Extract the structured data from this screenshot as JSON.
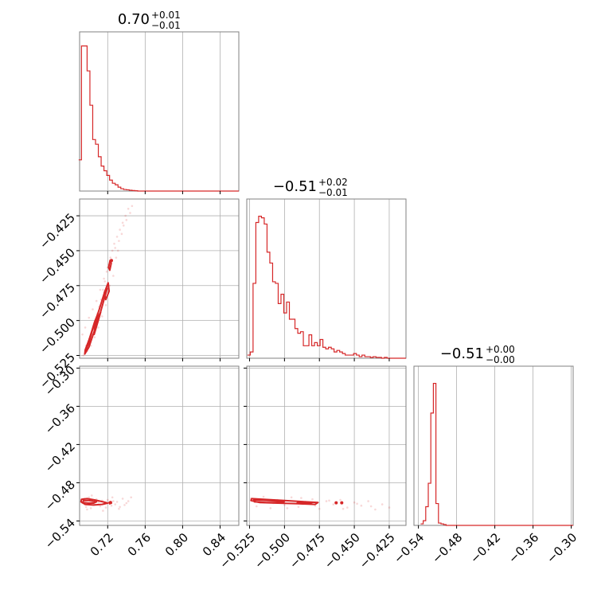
{
  "colors": {
    "series": "#d62728",
    "grid": "#b0b0b0",
    "frame": "#808080",
    "tick": "#000000",
    "background": "#ffffff"
  },
  "chart_data": {
    "type": "corner",
    "parameters": 3,
    "titles": [
      {
        "center": "0.70",
        "plus": "+0.01",
        "minus": "−0.01"
      },
      {
        "center": "−0.51",
        "plus": "+0.02",
        "minus": "−0.01"
      },
      {
        "center": "−0.51",
        "plus": "+0.00",
        "minus": "−0.00"
      }
    ],
    "ranges": [
      [
        0.69,
        0.86
      ],
      [
        -0.527,
        -0.413
      ],
      [
        -0.547,
        -0.297
      ]
    ],
    "ticks": [
      {
        "values": [
          0.72,
          0.76,
          0.8,
          0.84
        ],
        "labels": [
          "0.72",
          "0.76",
          "0.80",
          "0.84"
        ]
      },
      {
        "values": [
          -0.525,
          -0.5,
          -0.475,
          -0.45,
          -0.425
        ],
        "labels": [
          "−0.525",
          "−0.500",
          "−0.475",
          "−0.450",
          "−0.425"
        ]
      },
      {
        "values": [
          -0.54,
          -0.48,
          -0.42,
          -0.36,
          -0.3
        ],
        "labels": [
          "−0.54",
          "−0.48",
          "−0.42",
          "−0.36",
          "−0.30"
        ]
      }
    ],
    "histograms": [
      {
        "param": 0,
        "x": [
          0.6905,
          0.6935,
          0.6965,
          0.6995,
          0.7025,
          0.7055,
          0.7085,
          0.7115,
          0.7145,
          0.7175,
          0.7205,
          0.7235,
          0.7265,
          0.7295,
          0.7325,
          0.7355,
          0.7385,
          0.7415,
          0.7445,
          0.7475,
          0.7505
        ],
        "counts": [
          0.2,
          0.93,
          0.93,
          0.77,
          0.55,
          0.33,
          0.3,
          0.22,
          0.16,
          0.13,
          0.1,
          0.07,
          0.05,
          0.04,
          0.025,
          0.015,
          0.01,
          0.008,
          0.005,
          0.003,
          0.002
        ]
      },
      {
        "param": 1,
        "x": [
          -0.5255,
          -0.5235,
          -0.5215,
          -0.5195,
          -0.5175,
          -0.5155,
          -0.5135,
          -0.5115,
          -0.5095,
          -0.5075,
          -0.5055,
          -0.5035,
          -0.5015,
          -0.4995,
          -0.4975,
          -0.4955,
          -0.4935,
          -0.4915,
          -0.4895,
          -0.4875,
          -0.4855,
          -0.4835,
          -0.4815,
          -0.4795,
          -0.4775,
          -0.4755,
          -0.4735,
          -0.4715,
          -0.4695,
          -0.4675,
          -0.4655,
          -0.4635,
          -0.4615,
          -0.4595,
          -0.4575,
          -0.4555,
          -0.4535,
          -0.4515,
          -0.4495,
          -0.4475,
          -0.4455,
          -0.4435,
          -0.4415,
          -0.4395,
          -0.4375,
          -0.4355,
          -0.4335,
          -0.4315,
          -0.4295,
          -0.4275,
          -0.4255,
          -0.4235,
          -0.4215,
          -0.4195,
          -0.4175,
          -0.4155
        ],
        "counts": [
          0.02,
          0.04,
          0.48,
          0.87,
          0.91,
          0.9,
          0.86,
          0.68,
          0.61,
          0.49,
          0.48,
          0.35,
          0.41,
          0.29,
          0.36,
          0.25,
          0.25,
          0.19,
          0.16,
          0.17,
          0.08,
          0.08,
          0.15,
          0.08,
          0.1,
          0.08,
          0.12,
          0.07,
          0.06,
          0.07,
          0.06,
          0.04,
          0.05,
          0.04,
          0.03,
          0.02,
          0.02,
          0.02,
          0.03,
          0.02,
          0.01,
          0.02,
          0.01,
          0.01,
          0.005,
          0.01,
          0.005,
          0.005,
          0,
          0.005,
          0,
          0,
          0,
          0,
          0,
          0
        ]
      },
      {
        "param": 2,
        "x": [
          -0.5345,
          -0.5305,
          -0.5265,
          -0.5225,
          -0.5185,
          -0.5145,
          -0.5105,
          -0.5065,
          -0.5025,
          -0.4985,
          -0.4945,
          -0.4905
        ],
        "counts": [
          0.01,
          0.03,
          0.12,
          0.27,
          0.72,
          0.91,
          0.14,
          0.015,
          0.01,
          0.005,
          0,
          0
        ]
      }
    ],
    "pairs": [
      {
        "x_param": 0,
        "y_param": 1,
        "scatter": [
          [
            0.694,
            -0.525
          ],
          [
            0.697,
            -0.518
          ],
          [
            0.699,
            -0.52
          ],
          [
            0.701,
            -0.515
          ],
          [
            0.703,
            -0.51
          ],
          [
            0.705,
            -0.505
          ],
          [
            0.707,
            -0.5
          ],
          [
            0.709,
            -0.495
          ],
          [
            0.711,
            -0.49
          ],
          [
            0.713,
            -0.485
          ],
          [
            0.715,
            -0.478
          ],
          [
            0.717,
            -0.472
          ],
          [
            0.719,
            -0.465
          ],
          [
            0.721,
            -0.46
          ],
          [
            0.723,
            -0.455
          ],
          [
            0.725,
            -0.45
          ],
          [
            0.727,
            -0.445
          ],
          [
            0.73,
            -0.44
          ],
          [
            0.733,
            -0.435
          ],
          [
            0.736,
            -0.43
          ],
          [
            0.739,
            -0.425
          ],
          [
            0.742,
            -0.42
          ],
          [
            0.693,
            -0.51
          ],
          [
            0.696,
            -0.505
          ],
          [
            0.7,
            -0.498
          ],
          [
            0.704,
            -0.492
          ],
          [
            0.708,
            -0.486
          ],
          [
            0.712,
            -0.478
          ],
          [
            0.716,
            -0.47
          ],
          [
            0.72,
            -0.462
          ],
          [
            0.724,
            -0.458
          ],
          [
            0.728,
            -0.448
          ],
          [
            0.732,
            -0.443
          ],
          [
            0.735,
            -0.438
          ],
          [
            0.698,
            -0.522
          ],
          [
            0.702,
            -0.518
          ],
          [
            0.706,
            -0.512
          ],
          [
            0.71,
            -0.505
          ],
          [
            0.714,
            -0.497
          ],
          [
            0.718,
            -0.489
          ],
          [
            0.722,
            -0.475
          ],
          [
            0.726,
            -0.468
          ],
          [
            0.729,
            -0.455
          ],
          [
            0.731,
            -0.45
          ],
          [
            0.737,
            -0.432
          ],
          [
            0.74,
            -0.428
          ],
          [
            0.744,
            -0.423
          ],
          [
            0.746,
            -0.418
          ]
        ],
        "contours": [
          [
            [
              0.6955,
              -0.524
            ],
            [
              0.7,
              -0.519
            ],
            [
              0.7055,
              -0.508
            ],
            [
              0.7115,
              -0.496
            ],
            [
              0.7165,
              -0.484
            ],
            [
              0.7195,
              -0.477
            ],
            [
              0.717,
              -0.479
            ],
            [
              0.711,
              -0.492
            ],
            [
              0.7055,
              -0.503
            ],
            [
              0.7,
              -0.514
            ],
            [
              0.696,
              -0.521
            ]
          ],
          [
            [
              0.696,
              -0.522
            ],
            [
              0.7,
              -0.516
            ],
            [
              0.704,
              -0.506
            ],
            [
              0.709,
              -0.496
            ],
            [
              0.706,
              -0.501
            ],
            [
              0.701,
              -0.512
            ]
          ],
          [
            [
              0.7055,
              -0.51
            ],
            [
              0.7095,
              -0.501
            ],
            [
              0.7125,
              -0.494
            ],
            [
              0.709,
              -0.498
            ],
            [
              0.706,
              -0.505
            ]
          ],
          [
            [
              0.721,
              -0.462
            ],
            [
              0.7225,
              -0.457
            ],
            [
              0.7238,
              -0.459
            ],
            [
              0.7222,
              -0.464
            ]
          ],
          [
            [
              0.7165,
              -0.48
            ],
            [
              0.7205,
              -0.473
            ],
            [
              0.7215,
              -0.479
            ],
            [
              0.718,
              -0.485
            ]
          ]
        ],
        "points": [
          [
            0.724,
            -0.457
          ]
        ]
      },
      {
        "x_param": 0,
        "y_param": 2,
        "scatter": [
          [
            0.693,
            -0.512
          ],
          [
            0.695,
            -0.505
          ],
          [
            0.697,
            -0.518
          ],
          [
            0.7,
            -0.503
          ],
          [
            0.702,
            -0.52
          ],
          [
            0.704,
            -0.509
          ],
          [
            0.706,
            -0.514
          ],
          [
            0.708,
            -0.506
          ],
          [
            0.71,
            -0.511
          ],
          [
            0.712,
            -0.517
          ],
          [
            0.714,
            -0.508
          ],
          [
            0.716,
            -0.513
          ],
          [
            0.718,
            -0.519
          ],
          [
            0.72,
            -0.507
          ],
          [
            0.722,
            -0.512
          ],
          [
            0.724,
            -0.516
          ],
          [
            0.726,
            -0.509
          ],
          [
            0.728,
            -0.514
          ],
          [
            0.73,
            -0.51
          ],
          [
            0.733,
            -0.518
          ],
          [
            0.736,
            -0.505
          ],
          [
            0.74,
            -0.512
          ],
          [
            0.745,
            -0.503
          ],
          [
            0.698,
            -0.522
          ],
          [
            0.703,
            -0.5
          ],
          [
            0.715,
            -0.524
          ],
          [
            0.725,
            -0.503
          ],
          [
            0.732,
            -0.521
          ],
          [
            0.738,
            -0.515
          ],
          [
            0.742,
            -0.509
          ]
        ],
        "contours": [
          [
            [
              0.692,
              -0.506
            ],
            [
              0.698,
              -0.505
            ],
            [
              0.706,
              -0.507
            ],
            [
              0.715,
              -0.51
            ],
            [
              0.72,
              -0.512
            ],
            [
              0.714,
              -0.514
            ],
            [
              0.705,
              -0.515
            ],
            [
              0.696,
              -0.514
            ],
            [
              0.6915,
              -0.51
            ]
          ],
          [
            [
              0.694,
              -0.508
            ],
            [
              0.7,
              -0.508
            ],
            [
              0.708,
              -0.51
            ],
            [
              0.705,
              -0.512
            ],
            [
              0.699,
              -0.512
            ],
            [
              0.6935,
              -0.511
            ]
          ],
          [
            [
              0.7215,
              -0.511
            ],
            [
              0.7235,
              -0.51
            ],
            [
              0.724,
              -0.512
            ],
            [
              0.722,
              -0.513
            ]
          ]
        ],
        "points": [
          [
            0.723,
            -0.511
          ]
        ]
      },
      {
        "x_param": 1,
        "y_param": 2,
        "scatter": [
          [
            -0.524,
            -0.505
          ],
          [
            -0.52,
            -0.517
          ],
          [
            -0.515,
            -0.502
          ],
          [
            -0.51,
            -0.52
          ],
          [
            -0.505,
            -0.507
          ],
          [
            -0.5,
            -0.515
          ],
          [
            -0.495,
            -0.503
          ],
          [
            -0.49,
            -0.518
          ],
          [
            -0.485,
            -0.51
          ],
          [
            -0.48,
            -0.506
          ],
          [
            -0.475,
            -0.521
          ],
          [
            -0.47,
            -0.509
          ],
          [
            -0.465,
            -0.514
          ],
          [
            -0.46,
            -0.507
          ],
          [
            -0.455,
            -0.519
          ],
          [
            -0.45,
            -0.511
          ],
          [
            -0.445,
            -0.516
          ],
          [
            -0.44,
            -0.509
          ],
          [
            -0.435,
            -0.522
          ],
          [
            -0.43,
            -0.514
          ],
          [
            -0.425,
            -0.519
          ],
          [
            -0.518,
            -0.509
          ],
          [
            -0.508,
            -0.512
          ],
          [
            -0.498,
            -0.52
          ],
          [
            -0.488,
            -0.504
          ],
          [
            -0.478,
            -0.516
          ],
          [
            -0.468,
            -0.508
          ],
          [
            -0.458,
            -0.521
          ],
          [
            -0.448,
            -0.513
          ],
          [
            -0.438,
            -0.517
          ]
        ],
        "contours": [
          [
            [
              -0.5235,
              -0.505
            ],
            [
              -0.515,
              -0.506
            ],
            [
              -0.5,
              -0.508
            ],
            [
              -0.485,
              -0.51
            ],
            [
              -0.476,
              -0.511
            ],
            [
              -0.478,
              -0.514
            ],
            [
              -0.49,
              -0.513
            ],
            [
              -0.505,
              -0.512
            ],
            [
              -0.518,
              -0.511
            ],
            [
              -0.524,
              -0.508
            ]
          ],
          [
            [
              -0.522,
              -0.507
            ],
            [
              -0.512,
              -0.508
            ],
            [
              -0.5,
              -0.509
            ],
            [
              -0.501,
              -0.511
            ],
            [
              -0.513,
              -0.511
            ],
            [
              -0.5215,
              -0.51
            ]
          ],
          [
            [
              -0.49,
              -0.51
            ],
            [
              -0.48,
              -0.511
            ],
            [
              -0.482,
              -0.512
            ],
            [
              -0.491,
              -0.512
            ]
          ]
        ],
        "points": [
          [
            -0.463,
            -0.5115
          ],
          [
            -0.459,
            -0.5115
          ]
        ]
      }
    ]
  }
}
